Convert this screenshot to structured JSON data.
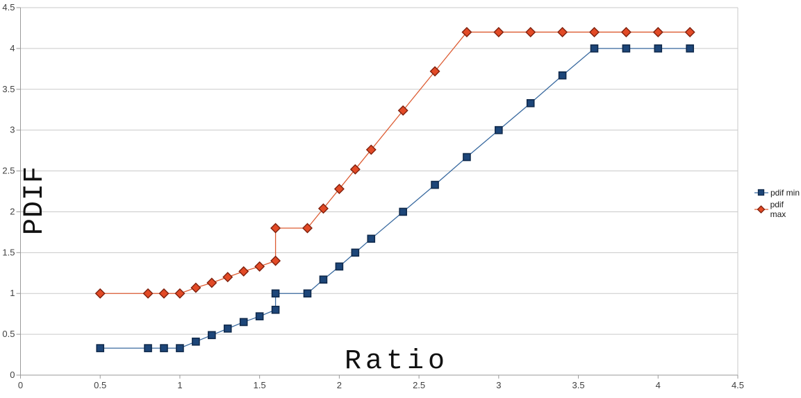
{
  "chart_data": {
    "type": "line",
    "title": "",
    "xlabel": "Ratio",
    "ylabel": "PDIF",
    "xlim": [
      0,
      4.5
    ],
    "ylim": [
      0,
      4.5
    ],
    "x_ticks": [
      "0",
      "0.5",
      "1",
      "1.5",
      "2",
      "2.5",
      "3",
      "3.5",
      "4",
      "4.5"
    ],
    "y_ticks": [
      "0",
      "0.5",
      "1",
      "1.5",
      "2",
      "2.5",
      "3",
      "3.5",
      "4",
      "4.5"
    ],
    "grid": "horizontal-only",
    "legend_position": "right-middle",
    "x": [
      0.5,
      0.8,
      0.9,
      1.0,
      1.1,
      1.2,
      1.3,
      1.4,
      1.5,
      1.6,
      1.6,
      1.8,
      1.9,
      2.0,
      2.1,
      2.2,
      2.4,
      2.6,
      2.8,
      3.0,
      3.2,
      3.4,
      3.6,
      3.8,
      4.0,
      4.2
    ],
    "series": [
      {
        "name": "pdif min",
        "marker": "square",
        "line_color": "#38699F",
        "marker_fill": "#1D4679",
        "marker_stroke": "#102A4C",
        "values": [
          0.33,
          0.33,
          0.33,
          0.33,
          0.41,
          0.49,
          0.57,
          0.65,
          0.72,
          0.8,
          1.0,
          1.0,
          1.17,
          1.33,
          1.5,
          1.67,
          2.0,
          2.33,
          2.67,
          3.0,
          3.33,
          3.67,
          4.0,
          4.0,
          4.0,
          4.0
        ]
      },
      {
        "name": "pdif max",
        "marker": "diamond",
        "line_color": "#DD5C33",
        "marker_fill": "#E24A26",
        "marker_stroke": "#7E1F0C",
        "values": [
          1.0,
          1.0,
          1.0,
          1.0,
          1.07,
          1.13,
          1.2,
          1.27,
          1.33,
          1.4,
          1.8,
          1.8,
          2.04,
          2.28,
          2.52,
          2.76,
          3.24,
          3.72,
          4.2,
          4.2,
          4.2,
          4.2,
          4.2,
          4.2,
          4.2,
          4.2
        ]
      }
    ],
    "colors": {
      "background": "#FFFFFF",
      "gridline": "#C9C9C9",
      "axis": "#999999",
      "tick_label": "#404040"
    }
  }
}
